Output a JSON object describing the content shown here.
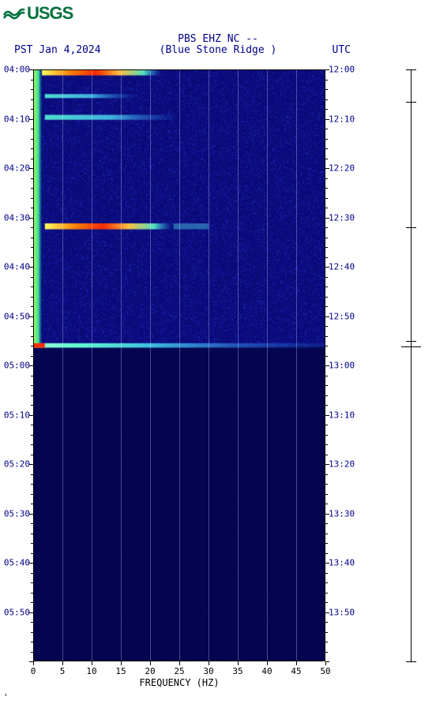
{
  "logo": {
    "text": "USGS",
    "color": "#00703c"
  },
  "header": {
    "title_line1": "PBS EHZ NC --",
    "subtitle": "(Blue Stone Ridge )",
    "date_label": "PST  Jan 4,2024",
    "utc_label": "UTC"
  },
  "chart": {
    "type": "spectrogram",
    "plot_bg_dark": "#0a0a80",
    "plot_bg_darker": "#050560",
    "grid_color": "rgba(200,200,255,0.35)",
    "x_label": "FREQUENCY (HZ)",
    "x_min": 0,
    "x_max": 50,
    "x_tick_step": 5,
    "y_left_labels": [
      "04:00",
      "04:10",
      "04:20",
      "04:30",
      "04:40",
      "04:50",
      "05:00",
      "05:10",
      "05:20",
      "05:30",
      "05:40",
      "05:50"
    ],
    "y_right_labels": [
      "12:00",
      "12:10",
      "12:20",
      "12:30",
      "12:40",
      "12:50",
      "13:00",
      "13:10",
      "13:20",
      "13:30",
      "13:40",
      "13:50"
    ],
    "y_minor_per_major": 5,
    "event_ticks_short": [
      0,
      6.5,
      32.0,
      55.0
    ],
    "event_ticks_long": [
      56.1
    ],
    "spectral_bands": [
      {
        "t0": 0,
        "t1": 56.1,
        "f0": 0,
        "f1": 1.5,
        "type": "green_edge"
      },
      {
        "t0": 0,
        "t1": 1.2,
        "f0": 1.5,
        "f1": 22,
        "type": "hot"
      },
      {
        "t0": 5.0,
        "t1": 5.8,
        "f0": 2,
        "f1": 18,
        "type": "teal"
      },
      {
        "t0": 9.2,
        "t1": 10.2,
        "f0": 2,
        "f1": 25,
        "type": "teal"
      },
      {
        "t0": 31.2,
        "t1": 32.4,
        "f0": 2,
        "f1": 24,
        "type": "hot"
      },
      {
        "t0": 31.2,
        "t1": 32.4,
        "f0": 24,
        "f1": 30,
        "type": "teal_faint"
      },
      {
        "t0": 55.5,
        "t1": 56.4,
        "f0": 0,
        "f1": 50,
        "type": "hot_line"
      },
      {
        "t0": 55.5,
        "t1": 56.4,
        "f0": 0,
        "f1": 2,
        "type": "red_dot"
      }
    ],
    "noise_region": {
      "t0": 0,
      "t1": 56.1,
      "f0": 0,
      "f1": 50
    },
    "transition_t": 56.1,
    "footer_mark": "'"
  }
}
